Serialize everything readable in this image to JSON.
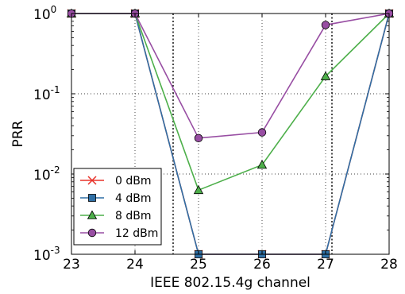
{
  "chart_data": {
    "type": "line",
    "xlabel": "IEEE 802.15.4g channel",
    "ylabel": "PRR",
    "x": [
      23,
      24,
      25,
      26,
      27,
      28
    ],
    "xlim": [
      23,
      28
    ],
    "ylim": [
      0.001,
      1
    ],
    "yscale": "log",
    "grid": true,
    "legend_position": "bottom-left",
    "x_tick_labels": [
      "23",
      "24",
      "25",
      "26",
      "27",
      "28"
    ],
    "y_ticks": [
      {
        "base": "10",
        "exp": "0",
        "value": 1
      },
      {
        "base": "10",
        "exp": "-1",
        "value": 0.1
      },
      {
        "base": "10",
        "exp": "-2",
        "value": 0.01
      },
      {
        "base": "10",
        "exp": "-3",
        "value": 0.001
      }
    ],
    "vertical_dashed_lines": [
      24.6,
      27.1
    ],
    "series": [
      {
        "name": "0 dBm",
        "color": "#e8332a",
        "marker": "x",
        "values": [
          1,
          1,
          0.001,
          0.001,
          0.001,
          1
        ]
      },
      {
        "name": "4 dBm",
        "color": "#2f6fa5",
        "marker": "square",
        "values": [
          1,
          1,
          0.001,
          0.001,
          0.001,
          1
        ]
      },
      {
        "name": "8 dBm",
        "color": "#4daf4a",
        "marker": "triangle",
        "values": [
          1,
          1,
          0.0063,
          0.013,
          0.165,
          1
        ]
      },
      {
        "name": "12 dBm",
        "color": "#984ea3",
        "marker": "circle",
        "values": [
          1,
          1,
          0.028,
          0.033,
          0.72,
          1
        ]
      }
    ]
  }
}
